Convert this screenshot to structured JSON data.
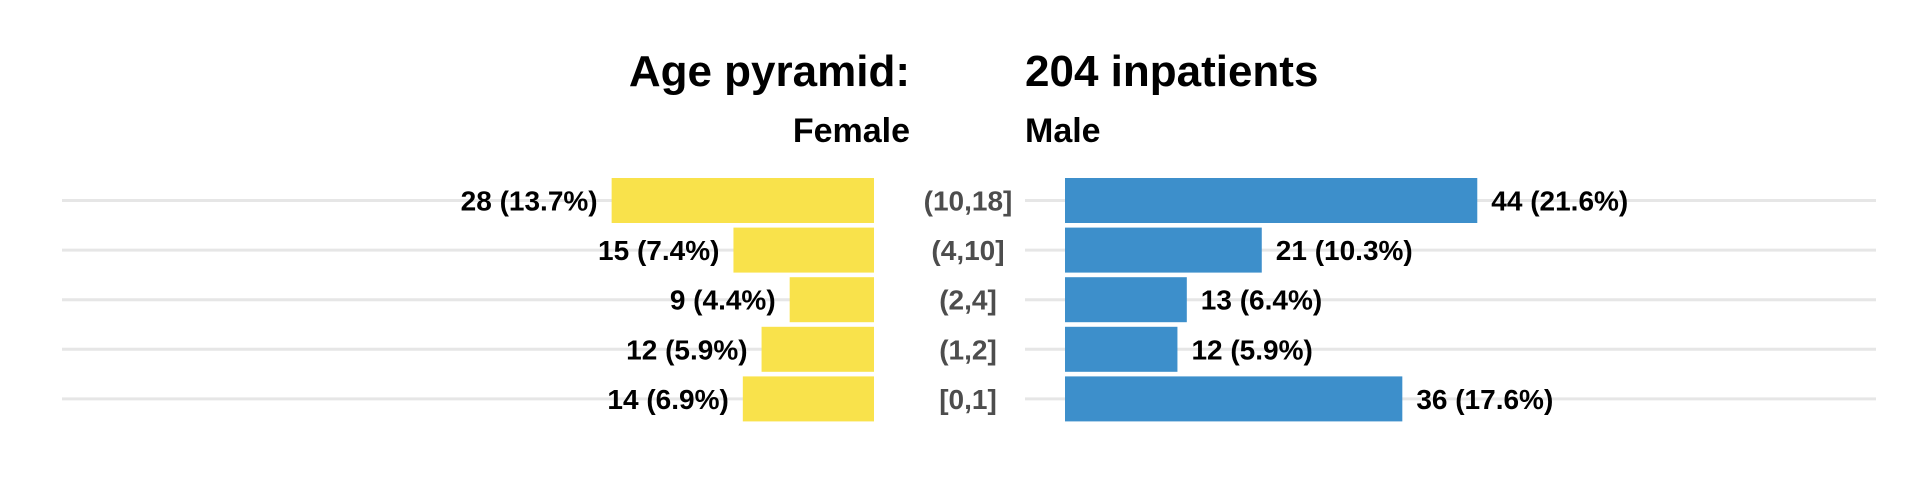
{
  "chart_data": {
    "type": "bar",
    "title_left": "Age pyramid:",
    "title_right": "204 inpatients",
    "categories": [
      "(10,18]",
      "(4,10]",
      "(2,4]",
      "(1,2]",
      "[0,1]"
    ],
    "series": [
      {
        "name": "Female",
        "color": "#f9e24b",
        "values": [
          28,
          15,
          9,
          12,
          14
        ],
        "labels": [
          "28 (13.7%)",
          "15 (7.4%)",
          "9 (4.4%)",
          "12 (5.9%)",
          "14 (6.9%)"
        ]
      },
      {
        "name": "Male",
        "color": "#3d8fcb",
        "values": [
          44,
          21,
          13,
          12,
          36
        ],
        "labels": [
          "44 (21.6%)",
          "21 (10.3%)",
          "13 (6.4%)",
          "12 (5.9%)",
          "36 (17.6%)"
        ]
      }
    ],
    "grid": true,
    "legend": "none"
  }
}
